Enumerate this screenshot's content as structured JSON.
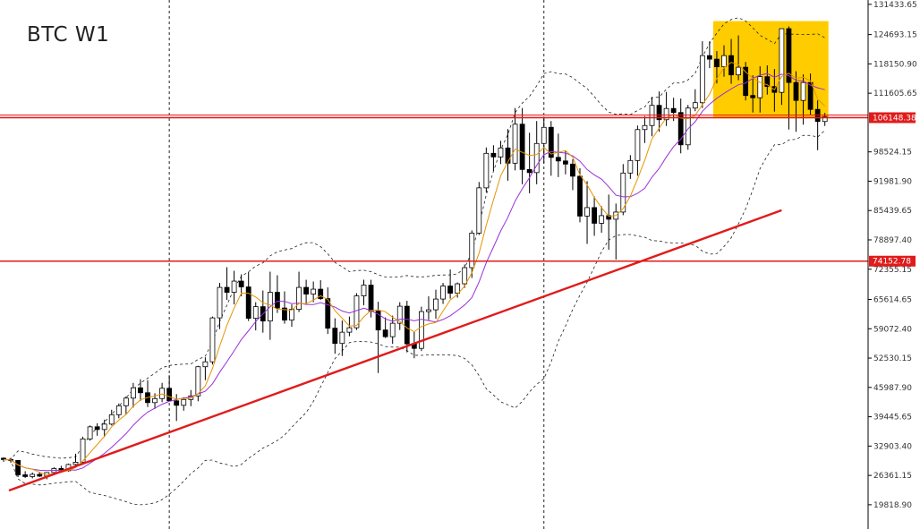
{
  "chart_data": {
    "type": "candlestick",
    "title": "BTC W1",
    "y_axis_labels": [
      "131433.65",
      "124693.15",
      "118150.90",
      "111605.65",
      "106148.38",
      "98524.15",
      "91981.90",
      "85439.65",
      "78897.40",
      "74152.78",
      "72355.15",
      "65614.65",
      "59072.40",
      "52530.15",
      "45987.90",
      "39445.65",
      "32903.40",
      "26361.15",
      "19818.90"
    ],
    "y_ticks": [
      131433.65,
      124693.15,
      118150.9,
      111605.65,
      98524.15,
      91981.9,
      85439.65,
      78897.4,
      72355.15,
      65614.65,
      59072.4,
      52530.15,
      45987.9,
      39445.65,
      32903.4,
      26361.15,
      19818.9
    ],
    "ylim": [
      19000,
      132000
    ],
    "price_levels": [
      {
        "label": "106148.38",
        "value": 106148.38,
        "color": "#e01b1b"
      },
      {
        "label": "74152.78",
        "value": 74152.78,
        "color": "#e01b1b"
      }
    ],
    "candles": [
      [
        30200,
        30400,
        29400,
        29900
      ],
      [
        29900,
        30300,
        29200,
        29700
      ],
      [
        29700,
        29800,
        26000,
        26500
      ],
      [
        26500,
        27300,
        25800,
        26100
      ],
      [
        26100,
        27000,
        25700,
        26600
      ],
      [
        26600,
        27200,
        26000,
        26200
      ],
      [
        26200,
        27100,
        25500,
        27000
      ],
      [
        27000,
        28200,
        26800,
        27900
      ],
      [
        27900,
        28500,
        27000,
        27400
      ],
      [
        27400,
        29000,
        27200,
        28800
      ],
      [
        28800,
        31200,
        28300,
        29300
      ],
      [
        29300,
        35000,
        29100,
        34500
      ],
      [
        34500,
        37500,
        34100,
        37200
      ],
      [
        37200,
        38000,
        35200,
        36600
      ],
      [
        36600,
        38800,
        34900,
        37800
      ],
      [
        37800,
        41000,
        37500,
        39900
      ],
      [
        39900,
        42400,
        39100,
        41900
      ],
      [
        41900,
        44000,
        40000,
        43600
      ],
      [
        43600,
        47000,
        41500,
        45900
      ],
      [
        45900,
        47800,
        43000,
        44800
      ],
      [
        44800,
        47600,
        41600,
        42600
      ],
      [
        42600,
        44700,
        41200,
        43500
      ],
      [
        43500,
        47000,
        42700,
        45800
      ],
      [
        45800,
        48700,
        42900,
        43000
      ],
      [
        43000,
        44500,
        38500,
        42000
      ],
      [
        42000,
        43800,
        40800,
        43300
      ],
      [
        43300,
        45400,
        41800,
        44100
      ],
      [
        44100,
        50800,
        42900,
        50600
      ],
      [
        50600,
        52700,
        47600,
        51700
      ],
      [
        51700,
        61800,
        51100,
        61500
      ],
      [
        61500,
        69300,
        59000,
        68300
      ],
      [
        68300,
        72800,
        65500,
        67200
      ],
      [
        67200,
        72000,
        64500,
        69700
      ],
      [
        69700,
        71200,
        66300,
        68400
      ],
      [
        68400,
        71700,
        60800,
        61400
      ],
      [
        61400,
        65000,
        58700,
        64000
      ],
      [
        64000,
        67600,
        58200,
        60800
      ],
      [
        60800,
        71800,
        56600,
        67200
      ],
      [
        67200,
        71000,
        62600,
        63700
      ],
      [
        63700,
        67400,
        60200,
        61000
      ],
      [
        61000,
        64500,
        59500,
        63400
      ],
      [
        63400,
        71800,
        62800,
        68300
      ],
      [
        68300,
        70000,
        64600,
        66800
      ],
      [
        66800,
        69600,
        65000,
        67900
      ],
      [
        67900,
        69900,
        65500,
        65800
      ],
      [
        65800,
        68300,
        57900,
        59200
      ],
      [
        59200,
        61400,
        53500,
        55800
      ],
      [
        55800,
        60900,
        53000,
        58300
      ],
      [
        58300,
        61800,
        57400,
        59300
      ],
      [
        59300,
        67000,
        58800,
        66400
      ],
      [
        66400,
        70000,
        64300,
        68800
      ],
      [
        68800,
        70000,
        61600,
        63000
      ],
      [
        63000,
        65100,
        49200,
        58800
      ],
      [
        58800,
        61600,
        57000,
        57300
      ],
      [
        57300,
        62000,
        55700,
        60300
      ],
      [
        60300,
        65000,
        58800,
        64100
      ],
      [
        64100,
        65300,
        53800,
        55700
      ],
      [
        55700,
        58400,
        52500,
        54700
      ],
      [
        54700,
        64000,
        54100,
        62900
      ],
      [
        62900,
        66300,
        61000,
        63300
      ],
      [
        63300,
        67800,
        61300,
        65700
      ],
      [
        65700,
        69300,
        64600,
        68600
      ],
      [
        68600,
        72300,
        65800,
        67000
      ],
      [
        67000,
        69400,
        66000,
        69100
      ],
      [
        69100,
        73400,
        68200,
        72700
      ],
      [
        72700,
        81000,
        70400,
        80400
      ],
      [
        80400,
        91800,
        80000,
        90500
      ],
      [
        90500,
        99500,
        89500,
        98200
      ],
      [
        98200,
        100000,
        94300,
        97400
      ],
      [
        97400,
        101000,
        95800,
        99400
      ],
      [
        99400,
        103600,
        92100,
        96000
      ],
      [
        96000,
        108300,
        94400,
        104700
      ],
      [
        104700,
        108300,
        91300,
        94600
      ],
      [
        94600,
        102800,
        89300,
        93900
      ],
      [
        93900,
        105400,
        91300,
        100400
      ],
      [
        100400,
        106400,
        96000,
        104000
      ],
      [
        104000,
        105400,
        93200,
        97300
      ],
      [
        97300,
        102600,
        92900,
        96500
      ],
      [
        96500,
        98800,
        93500,
        95800
      ],
      [
        95800,
        96900,
        90000,
        93100
      ],
      [
        93100,
        94900,
        82800,
        84200
      ],
      [
        84200,
        92000,
        78000,
        86100
      ],
      [
        86100,
        88600,
        79800,
        82600
      ],
      [
        82600,
        86400,
        80500,
        84300
      ],
      [
        84300,
        89000,
        76700,
        83500
      ],
      [
        83500,
        87000,
        74500,
        85100
      ],
      [
        85100,
        95800,
        84400,
        93800
      ],
      [
        93800,
        97800,
        92500,
        96600
      ],
      [
        96600,
        104400,
        93200,
        103500
      ],
      [
        103500,
        106500,
        100500,
        104400
      ],
      [
        104400,
        110800,
        102000,
        108900
      ],
      [
        108900,
        112000,
        103000,
        105700
      ],
      [
        105700,
        111900,
        104300,
        108200
      ],
      [
        108200,
        110600,
        105400,
        107300
      ],
      [
        107300,
        110400,
        98200,
        100100
      ],
      [
        100100,
        109000,
        99000,
        108300
      ],
      [
        108300,
        112500,
        107600,
        109500
      ],
      [
        109500,
        123200,
        108300,
        120000
      ],
      [
        120000,
        123200,
        117200,
        119200
      ],
      [
        119200,
        121000,
        113800,
        117500
      ],
      [
        117500,
        122300,
        115300,
        120000
      ],
      [
        120000,
        123700,
        113700,
        115700
      ],
      [
        115700,
        124500,
        114500,
        117400
      ],
      [
        117400,
        118600,
        110000,
        111100
      ],
      [
        111100,
        115600,
        107300,
        110600
      ],
      [
        110600,
        117600,
        107300,
        115300
      ],
      [
        115300,
        117800,
        111300,
        113100
      ],
      [
        113100,
        117000,
        107500,
        111800
      ],
      [
        111800,
        126000,
        109000,
        126000
      ],
      [
        126000,
        126500,
        103500,
        114000
      ],
      [
        114000,
        116500,
        103000,
        110000
      ],
      [
        110000,
        115800,
        104600,
        114000
      ],
      [
        114000,
        116000,
        106800,
        108000
      ],
      [
        108000,
        110000,
        98900,
        105300
      ],
      [
        105300,
        107200,
        104300,
        106400
      ]
    ],
    "trendline": {
      "from": {
        "x": 0,
        "y": 23000
      },
      "to": {
        "x": 108,
        "y": 85500
      },
      "color": "#e01b1b"
    },
    "highlight": {
      "from_index": 99,
      "to_index": 117,
      "color": "#ffcc00"
    },
    "vlines_at_index": [
      23,
      75
    ],
    "indicators": [
      "orange moving average",
      "purple moving average",
      "Bollinger Bands (dashed)"
    ]
  }
}
